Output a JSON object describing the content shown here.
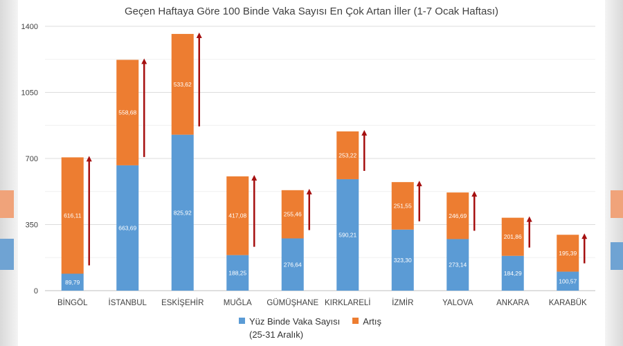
{
  "chart_data": {
    "type": "bar",
    "stacked": true,
    "title": "Geçen Haftaya Göre 100 Binde Vaka Sayısı En Çok Artan İller (1-7 Ocak Haftası)",
    "categories": [
      "BİNGÖL",
      "İSTANBUL",
      "ESKİŞEHİR",
      "MUĞLA",
      "GÜMÜŞHANE",
      "KIRKLARELİ",
      "İZMİR",
      "YALOVA",
      "ANKARA",
      "KARABÜK"
    ],
    "series": [
      {
        "name": "Yüz Binde Vaka Sayısı",
        "name_sub": "(25-31 Aralık)",
        "color": "#5b9bd5",
        "values": [
          89.79,
          663.69,
          825.92,
          188.25,
          276.64,
          590.21,
          323.3,
          273.14,
          184.29,
          100.57
        ],
        "labels": [
          "89,79",
          "663,69",
          "825,92",
          "188,25",
          "276,64",
          "590,21",
          "323,30",
          "273,14",
          "184,29",
          "100,57"
        ]
      },
      {
        "name": "Artış",
        "color": "#ed7d31",
        "values": [
          616.11,
          558.68,
          533.62,
          417.08,
          255.46,
          253.22,
          251.55,
          246.69,
          201.86,
          195.39
        ],
        "labels": [
          "616,11",
          "558,68",
          "533,62",
          "417,08",
          "255,46",
          "253,22",
          "251,55",
          "246,69",
          "201,86",
          "195,39"
        ]
      }
    ],
    "y_ticks": [
      "0",
      "350",
      "700",
      "1050",
      "1400"
    ],
    "ylim": [
      0,
      1400
    ],
    "grid": true,
    "arrow_color": "#a50f0f",
    "legend_position": "bottom"
  }
}
